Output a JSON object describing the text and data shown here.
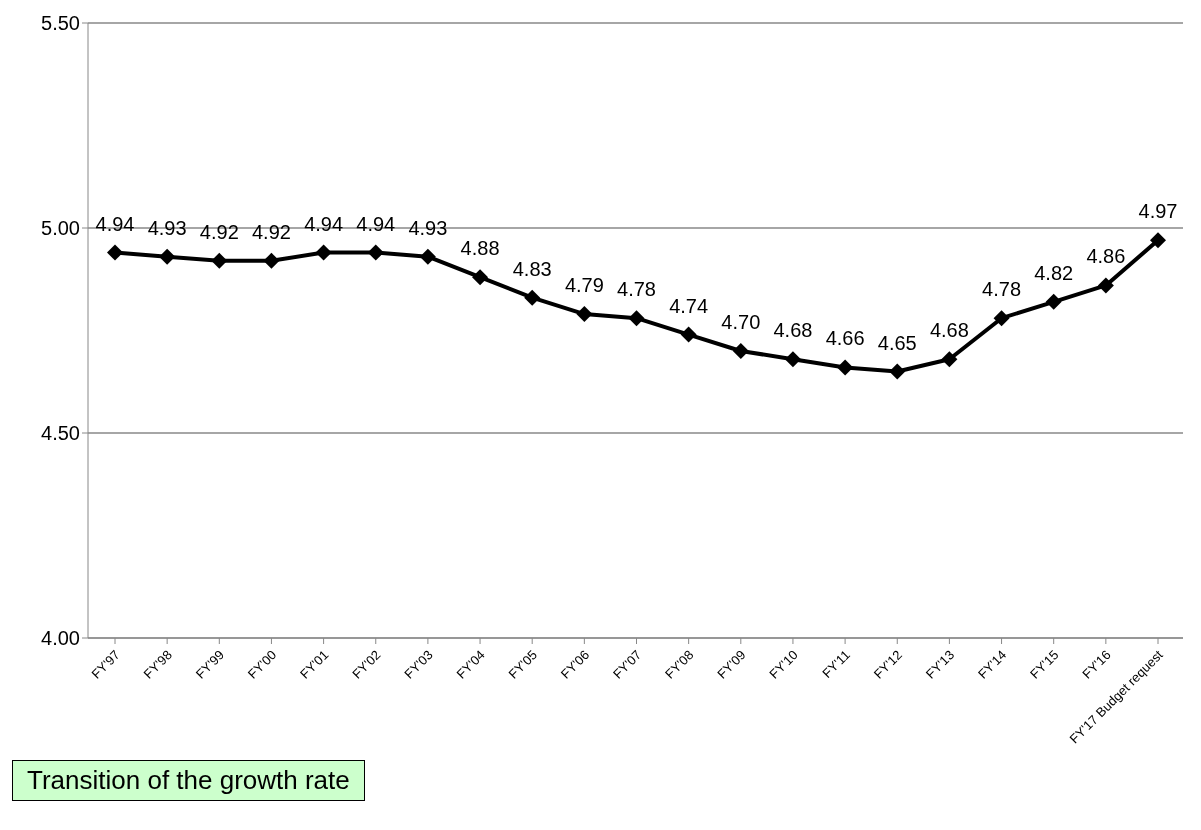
{
  "chart_data": {
    "type": "line",
    "categories": [
      "FY'97",
      "FY'98",
      "FY'99",
      "FY'00",
      "FY'01",
      "FY'02",
      "FY'03",
      "FY'04",
      "FY'05",
      "FY'06",
      "FY'07",
      "FY'08",
      "FY'09",
      "FY'10",
      "FY'11",
      "FY'12",
      "FY'13",
      "FY'14",
      "FY'15",
      "FY'16",
      "FY'17 Budget request"
    ],
    "series": [
      {
        "color": "#000000",
        "values": [
          4.94,
          4.93,
          4.92,
          4.92,
          4.94,
          4.94,
          4.93,
          4.88,
          4.83,
          4.79,
          4.78,
          4.74,
          4.7,
          4.68,
          4.66,
          4.65,
          4.68,
          4.78,
          4.82,
          4.86,
          4.97
        ],
        "value_labels": [
          "4.94",
          "4.93",
          "4.92",
          "4.92",
          "4.94",
          "4.94",
          "4.93",
          "4.88",
          "4.83",
          "4.79",
          "4.78",
          "4.74",
          "4.70",
          "4.68",
          "4.66",
          "4.65",
          "4.68",
          "4.78",
          "4.82",
          "4.86",
          "4.97"
        ]
      }
    ],
    "ylim": [
      4,
      5.5
    ],
    "yticks": [
      {
        "value": 4,
        "label": "4.00"
      },
      {
        "value": 4.5,
        "label": "4.50"
      },
      {
        "value": 5,
        "label": "5.00"
      },
      {
        "value": 5.5,
        "label": "5.50"
      }
    ],
    "grid": "y",
    "marker": "diamond",
    "line_style": "solid",
    "annotations": [
      "Transition of the growth rate"
    ]
  }
}
